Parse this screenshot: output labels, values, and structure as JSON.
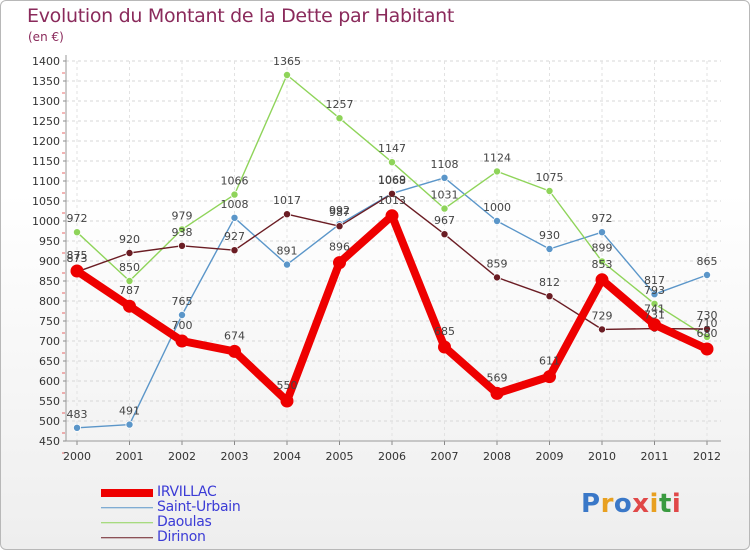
{
  "title": "Evolution du Montant de la Dette par Habitant",
  "subtitle": "(en €)",
  "chart_data": {
    "type": "line",
    "title": "Evolution du Montant de la Dette par Habitant",
    "ylabel": "(en €)",
    "xlabel": "",
    "ylim": [
      450,
      1400
    ],
    "yticks": [
      450,
      500,
      550,
      600,
      650,
      700,
      750,
      800,
      850,
      900,
      950,
      1000,
      1050,
      1100,
      1150,
      1200,
      1250,
      1300,
      1350,
      1400
    ],
    "categories": [
      "2000",
      "2001",
      "2002",
      "2003",
      "2004",
      "2005",
      "2006",
      "2007",
      "2008",
      "2009",
      "2010",
      "2011",
      "2012"
    ],
    "series": [
      {
        "name": "Saint-Urbain",
        "color": "#5b96c9",
        "values": [
          483,
          491,
          765,
          1008,
          891,
          992,
          1069,
          1108,
          1000,
          930,
          972,
          817,
          865
        ]
      },
      {
        "name": "Daoulas",
        "color": "#8fd45a",
        "values": [
          972,
          850,
          979,
          1066,
          1365,
          1257,
          1147,
          1031,
          1124,
          1075,
          899,
          793,
          710
        ]
      },
      {
        "name": "Dirinon",
        "color": "#6b1d24",
        "values": [
          873,
          920,
          938,
          927,
          1017,
          987,
          1068,
          967,
          859,
          812,
          729,
          731,
          730
        ]
      },
      {
        "name": "IRVILLAC",
        "color": "#ee0000",
        "values": [
          875,
          787,
          700,
          674,
          550,
          896,
          1013,
          685,
          569,
          611,
          853,
          741,
          680
        ]
      }
    ]
  },
  "legend": [
    {
      "name": "IRVILLAC",
      "color": "#ee0000"
    },
    {
      "name": "Saint-Urbain",
      "color": "#5b96c9"
    },
    {
      "name": "Daoulas",
      "color": "#8fd45a"
    },
    {
      "name": "Dirinon",
      "color": "#6b1d24"
    }
  ],
  "logo": {
    "text": "Proxiti"
  }
}
